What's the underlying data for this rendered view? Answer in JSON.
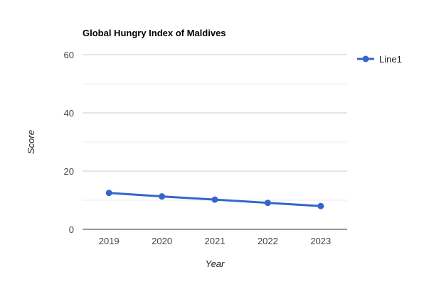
{
  "chart_data": {
    "type": "line",
    "title": "Global Hungry Index of Maldives",
    "xlabel": "Year",
    "ylabel": "Score",
    "categories": [
      "2019",
      "2020",
      "2021",
      "2022",
      "2023"
    ],
    "series": [
      {
        "name": "Line1",
        "values": [
          12.5,
          11.3,
          10.2,
          9.1,
          8.0
        ],
        "color": "#3366cc"
      }
    ],
    "ylim": [
      0,
      60
    ],
    "yticks": [
      "0",
      "20",
      "40",
      "60"
    ],
    "grid": true,
    "legend": "right"
  }
}
